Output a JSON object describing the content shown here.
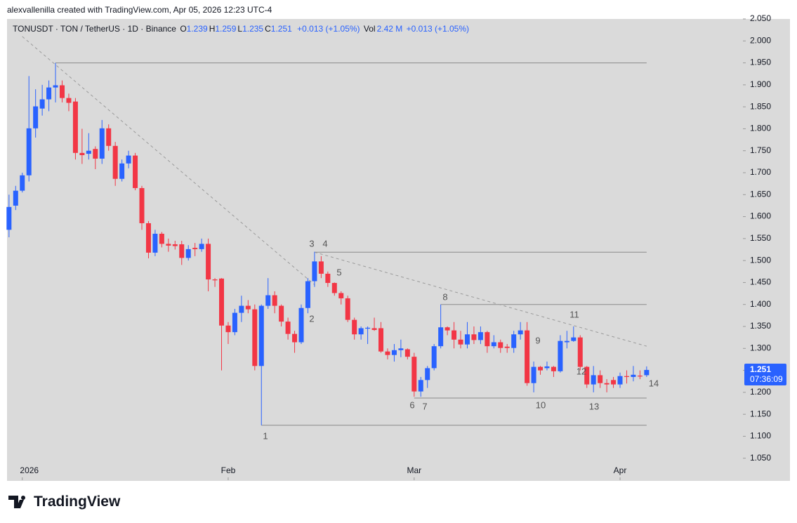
{
  "attribution": "alexvallenilla created with TradingView.com, Apr 05, 2026 12:23 UTC-4",
  "brand": "TradingView",
  "chart_data": {
    "type": "candlestick",
    "symbol": "TONUSDT · TON / TetherUS · 1D · Binance",
    "ohlc": [
      {
        "label": "O",
        "value": "1.239"
      },
      {
        "label": "H",
        "value": "1.259"
      },
      {
        "label": "L",
        "value": "1.235"
      },
      {
        "label": "C",
        "value": "1.251"
      }
    ],
    "change": "+0.013 (+1.05%)",
    "volume": {
      "label": "Vol",
      "value": "2.42 M",
      "change": "+0.013 (+1.05%)"
    },
    "up_color": "#2962ff",
    "down_color": "#f23645",
    "open": [
      1.57,
      1.625,
      1.659,
      1.694,
      1.801,
      1.846,
      1.867,
      1.894,
      1.899,
      1.87,
      1.862,
      1.745,
      1.743,
      1.754,
      1.732,
      1.801,
      1.761,
      1.686,
      1.721,
      1.739,
      1.665,
      1.585,
      1.518,
      1.561,
      1.538,
      1.537,
      1.537,
      1.506,
      1.529,
      1.526,
      1.538,
      1.457,
      1.459,
      1.352,
      1.337,
      1.381,
      1.397,
      1.389,
      1.26,
      1.397,
      1.421,
      1.397,
      1.361,
      1.333,
      1.314,
      1.392,
      1.453,
      1.498,
      1.47,
      1.449,
      1.426,
      1.414,
      1.365,
      1.332,
      1.345,
      1.346,
      1.346,
      1.293,
      1.285,
      1.296,
      1.298,
      1.281,
      1.202,
      1.228,
      1.255,
      1.305,
      1.348,
      1.341,
      1.32,
      1.309,
      1.332,
      1.319,
      1.337,
      1.305,
      1.314,
      1.304,
      1.301,
      1.332,
      1.341,
      1.221,
      1.258,
      1.255,
      1.258,
      1.248,
      1.314,
      1.317,
      1.325,
      1.258,
      1.218,
      1.239,
      1.221,
      1.228,
      1.218,
      1.237,
      1.235,
      1.238,
      1.239
    ],
    "high": [
      1.65,
      1.67,
      1.7,
      1.92,
      1.89,
      1.9,
      1.91,
      1.95,
      1.91,
      1.88,
      1.87,
      1.8,
      1.79,
      1.76,
      1.82,
      1.81,
      1.77,
      1.73,
      1.75,
      1.745,
      1.67,
      1.59,
      1.57,
      1.565,
      1.55,
      1.545,
      1.545,
      1.535,
      1.54,
      1.55,
      1.55,
      1.46,
      1.46,
      1.36,
      1.39,
      1.42,
      1.41,
      1.4,
      1.4,
      1.46,
      1.43,
      1.4,
      1.37,
      1.34,
      1.4,
      1.46,
      1.52,
      1.51,
      1.475,
      1.45,
      1.43,
      1.42,
      1.37,
      1.35,
      1.35,
      1.37,
      1.36,
      1.3,
      1.31,
      1.32,
      1.3,
      1.29,
      1.235,
      1.26,
      1.31,
      1.4,
      1.35,
      1.36,
      1.34,
      1.36,
      1.35,
      1.35,
      1.34,
      1.33,
      1.32,
      1.31,
      1.34,
      1.36,
      1.36,
      1.27,
      1.26,
      1.27,
      1.26,
      1.33,
      1.34,
      1.35,
      1.33,
      1.26,
      1.26,
      1.25,
      1.23,
      1.235,
      1.245,
      1.25,
      1.26,
      1.25,
      1.259
    ],
    "low": [
      1.553,
      1.615,
      1.655,
      1.68,
      1.78,
      1.83,
      1.84,
      1.86,
      1.86,
      1.84,
      1.73,
      1.72,
      1.73,
      1.708,
      1.72,
      1.75,
      1.67,
      1.68,
      1.71,
      1.66,
      1.57,
      1.505,
      1.51,
      1.53,
      1.52,
      1.525,
      1.49,
      1.5,
      1.51,
      1.52,
      1.43,
      1.44,
      1.25,
      1.31,
      1.33,
      1.36,
      1.38,
      1.25,
      1.125,
      1.39,
      1.38,
      1.35,
      1.32,
      1.29,
      1.31,
      1.38,
      1.44,
      1.46,
      1.44,
      1.42,
      1.4,
      1.36,
      1.32,
      1.32,
      1.31,
      1.34,
      1.29,
      1.275,
      1.27,
      1.28,
      1.275,
      1.19,
      1.19,
      1.21,
      1.25,
      1.3,
      1.33,
      1.3,
      1.3,
      1.3,
      1.31,
      1.31,
      1.29,
      1.3,
      1.29,
      1.29,
      1.29,
      1.32,
      1.215,
      1.2,
      1.24,
      1.25,
      1.235,
      1.245,
      1.3,
      1.315,
      1.25,
      1.21,
      1.2,
      1.21,
      1.2,
      1.21,
      1.21,
      1.22,
      1.225,
      1.23,
      1.235
    ],
    "close": [
      1.622,
      1.659,
      1.694,
      1.801,
      1.851,
      1.867,
      1.894,
      1.899,
      1.87,
      1.859,
      1.745,
      1.74,
      1.75,
      1.732,
      1.801,
      1.761,
      1.686,
      1.721,
      1.739,
      1.665,
      1.585,
      1.518,
      1.561,
      1.538,
      1.534,
      1.533,
      1.506,
      1.526,
      1.526,
      1.538,
      1.457,
      1.455,
      1.352,
      1.337,
      1.381,
      1.397,
      1.389,
      1.26,
      1.397,
      1.421,
      1.397,
      1.361,
      1.333,
      1.314,
      1.392,
      1.453,
      1.498,
      1.47,
      1.449,
      1.426,
      1.414,
      1.365,
      1.332,
      1.346,
      1.347,
      1.342,
      1.293,
      1.285,
      1.296,
      1.3,
      1.281,
      1.202,
      1.228,
      1.255,
      1.305,
      1.348,
      1.341,
      1.32,
      1.309,
      1.332,
      1.319,
      1.337,
      1.305,
      1.314,
      1.301,
      1.301,
      1.332,
      1.341,
      1.221,
      1.258,
      1.25,
      1.259,
      1.248,
      1.317,
      1.317,
      1.325,
      1.258,
      1.218,
      1.239,
      1.221,
      1.218,
      1.218,
      1.237,
      1.235,
      1.24,
      1.236,
      1.251
    ],
    "xlim": [
      -0.3,
      110.5
    ],
    "xticks": [
      {
        "value": 2,
        "label": "2026"
      },
      {
        "value": 33,
        "label": "Feb"
      },
      {
        "value": 61,
        "label": "Mar"
      },
      {
        "value": 92,
        "label": "Apr"
      }
    ],
    "ylim": [
      1.0,
      2.05
    ],
    "yticks": [
      {
        "value": 1.05,
        "label": "1.050"
      },
      {
        "value": 1.1,
        "label": "1.100"
      },
      {
        "value": 1.15,
        "label": "1.150"
      },
      {
        "value": 1.2,
        "label": "1.200"
      },
      {
        "value": 1.25,
        "label": "1.250"
      },
      {
        "value": 1.3,
        "label": "1.300"
      },
      {
        "value": 1.35,
        "label": "1.350"
      },
      {
        "value": 1.4,
        "label": "1.400"
      },
      {
        "value": 1.45,
        "label": "1.450"
      },
      {
        "value": 1.5,
        "label": "1.500"
      },
      {
        "value": 1.55,
        "label": "1.550"
      },
      {
        "value": 1.6,
        "label": "1.600"
      },
      {
        "value": 1.65,
        "label": "1.650"
      },
      {
        "value": 1.7,
        "label": "1.700"
      },
      {
        "value": 1.75,
        "label": "1.750"
      },
      {
        "value": 1.8,
        "label": "1.800"
      },
      {
        "value": 1.85,
        "label": "1.850"
      },
      {
        "value": 1.9,
        "label": "1.900"
      },
      {
        "value": 1.95,
        "label": "1.950"
      },
      {
        "value": 2.0,
        "label": "2.000"
      },
      {
        "value": 2.05,
        "label": "2.050"
      }
    ],
    "levels": [
      {
        "value": 1.95,
        "from": 7,
        "to": 96
      },
      {
        "value": 1.519,
        "from": 46,
        "to": 96
      },
      {
        "value": 1.4,
        "from": 65,
        "to": 96
      },
      {
        "value": 1.187,
        "from": 61,
        "to": 96
      },
      {
        "value": 1.125,
        "from": 38,
        "to": 96
      }
    ],
    "trendlines": [
      {
        "x": [
          2,
          46
        ],
        "y": [
          2.01,
          1.445
        ]
      },
      {
        "x": [
          46,
          96
        ],
        "y": [
          1.519,
          1.305
        ]
      }
    ],
    "annotations": [
      "1",
      "2",
      "3",
      "4",
      "5",
      "6",
      "7",
      "8",
      "9",
      "10",
      "11",
      "12",
      "13",
      "14"
    ],
    "last_price": {
      "value": 1.251,
      "label": "1.251",
      "countdown": "07:36:09"
    }
  }
}
